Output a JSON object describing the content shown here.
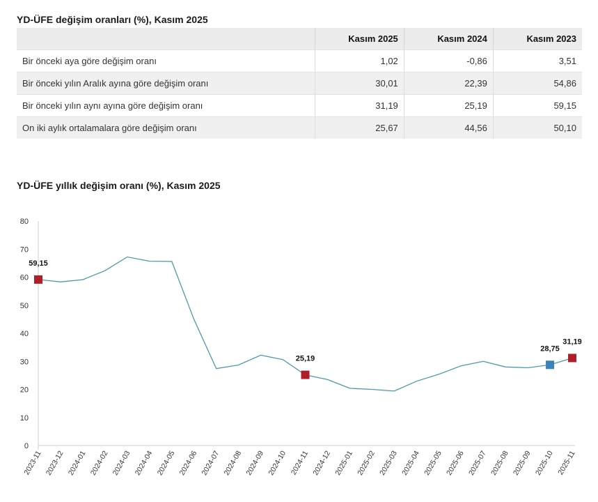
{
  "table": {
    "title": "YD-ÜFE değişim oranları (%), Kasım 2025",
    "headers": [
      "",
      "Kasım 2025",
      "Kasım 2024",
      "Kasım 2023"
    ],
    "rows": [
      {
        "label": "Bir önceki aya göre değişim oranı",
        "values": [
          "1,02",
          "-0,86",
          "3,51"
        ]
      },
      {
        "label": "Bir önceki yılın Aralık ayına göre değişim oranı",
        "values": [
          "30,01",
          "22,39",
          "54,86"
        ]
      },
      {
        "label": "Bir önceki yılın aynı ayına göre değişim oranı",
        "values": [
          "31,19",
          "25,19",
          "59,15"
        ]
      },
      {
        "label": "On iki aylık ortalamalara göre değişim oranı",
        "values": [
          "25,67",
          "44,56",
          "50,10"
        ]
      }
    ]
  },
  "chart_data": {
    "type": "line",
    "title": "YD-ÜFE yıllık değişim oranı (%), Kasım 2025",
    "xlabel": "",
    "ylabel": "",
    "ylim": [
      0,
      80
    ],
    "yticks": [
      0,
      10,
      20,
      30,
      40,
      50,
      60,
      70,
      80
    ],
    "grid": false,
    "x": [
      "2023-11",
      "2023-12",
      "2024-01",
      "2024-02",
      "2024-03",
      "2024-04",
      "2024-05",
      "2024-06",
      "2024-07",
      "2024-08",
      "2024-09",
      "2024-10",
      "2024-11",
      "2024-12",
      "2025-01",
      "2025-02",
      "2025-03",
      "2025-04",
      "2025-05",
      "2025-06",
      "2025-07",
      "2025-08",
      "2025-09",
      "2025-10",
      "2025-11"
    ],
    "series": [
      {
        "values": [
          59.15,
          58.3,
          59.1,
          62.3,
          67.2,
          65.7,
          65.6,
          44.9,
          27.4,
          28.7,
          32.2,
          30.6,
          25.19,
          23.5,
          20.4,
          20.0,
          19.4,
          22.9,
          25.4,
          28.4,
          30.0,
          28.0,
          27.7,
          28.75,
          31.19
        ],
        "color": "#4a9aa6"
      }
    ],
    "annotations": [
      {
        "x": "2023-11",
        "y": 59.15,
        "label": "59,15",
        "color": "#b01e2a"
      },
      {
        "x": "2024-11",
        "y": 25.19,
        "label": "25,19",
        "color": "#b01e2a"
      },
      {
        "x": "2025-10",
        "y": 28.75,
        "label": "28,75",
        "color": "#3b82b8"
      },
      {
        "x": "2025-11",
        "y": 31.19,
        "label": "31,19",
        "color": "#b01e2a"
      }
    ]
  }
}
